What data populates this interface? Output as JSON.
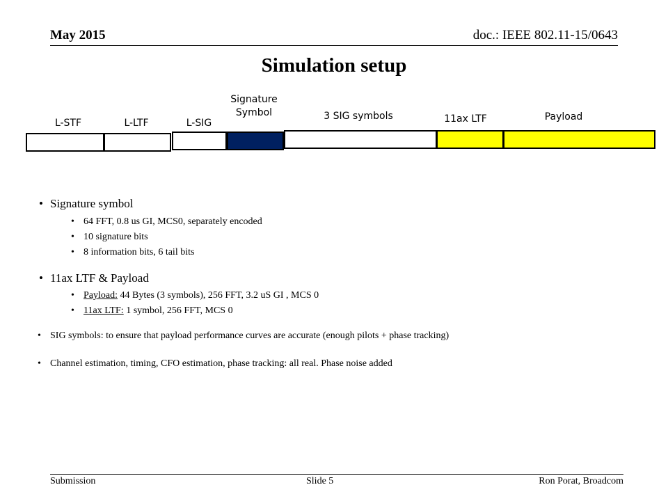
{
  "header": {
    "date": "May 2015",
    "doc": "doc.: IEEE 802.11-15/0643"
  },
  "title": "Simulation setup",
  "frame": {
    "labels": {
      "lstf": "L-STF",
      "lltf": "L-LTF",
      "lsig": "L-SIG",
      "sig_line1": "Signature",
      "sig_line2": "Symbol",
      "sig3": "3 SIG symbols",
      "ltf11ax": "11ax LTF",
      "payload": "Payload"
    },
    "colors": {
      "white": "#ffffff",
      "navy": "#002060",
      "yellow": "#ffff00"
    }
  },
  "bullets": {
    "sig_symbol": {
      "title": "Signature symbol",
      "items": [
        "64 FFT, 0.8 us GI, MCS0, separately encoded",
        "10 signature bits",
        "8 information bits, 6 tail bits"
      ]
    },
    "ltf_payload": {
      "title": "11ax LTF & Payload",
      "payload_key": "Payload:",
      "payload_val": " 44 Bytes (3 symbols), 256 FFT, 3.2 uS GI , MCS 0",
      "ltf_key": "11ax LTF:",
      "ltf_val": " 1 symbol, 256 FFT, MCS 0"
    },
    "sig_symbols": "SIG symbols: to ensure that payload performance curves are accurate (enough pilots + phase tracking)",
    "channel": "Channel estimation, timing, CFO estimation, phase tracking: all real. Phase noise added"
  },
  "footer": {
    "left": "Submission",
    "center": "Slide 5",
    "right": "Ron Porat, Broadcom"
  }
}
